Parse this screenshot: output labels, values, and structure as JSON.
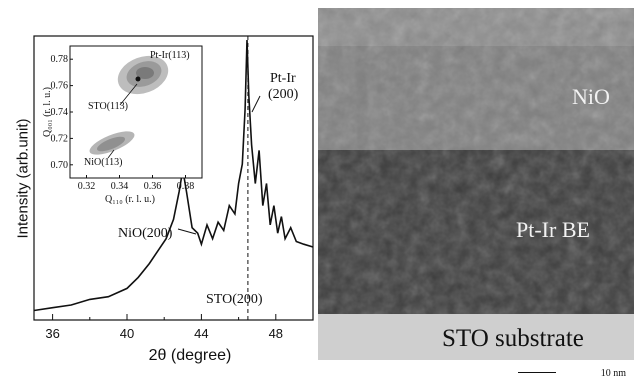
{
  "chart_data": [
    {
      "type": "line",
      "xlabel": "2θ (degree)",
      "ylabel": "Intensity (arb.unit)",
      "xlim": [
        35,
        50
      ],
      "xticks": [
        36,
        40,
        44,
        48
      ],
      "minor_xticks": [
        38,
        42,
        46
      ],
      "x": [
        35.0,
        36.0,
        37.0,
        38.0,
        39.0,
        40.0,
        40.6,
        41.2,
        41.7,
        42.1,
        42.5,
        42.8,
        43.0,
        43.2,
        43.5,
        43.8,
        44.0,
        44.3,
        44.6,
        44.9,
        45.2,
        45.5,
        45.8,
        46.0,
        46.2,
        46.35,
        46.45,
        46.55,
        46.7,
        46.9,
        47.1,
        47.3,
        47.5,
        47.7,
        47.9,
        48.1,
        48.3,
        48.5,
        48.8,
        49.1,
        49.5,
        50.0
      ],
      "y": [
        0.02,
        0.03,
        0.04,
        0.06,
        0.07,
        0.1,
        0.14,
        0.19,
        0.24,
        0.28,
        0.35,
        0.45,
        0.53,
        0.45,
        0.32,
        0.3,
        0.26,
        0.33,
        0.28,
        0.34,
        0.31,
        0.4,
        0.37,
        0.48,
        0.55,
        0.75,
        1.0,
        0.8,
        0.62,
        0.48,
        0.6,
        0.4,
        0.48,
        0.33,
        0.4,
        0.3,
        0.36,
        0.28,
        0.32,
        0.27,
        0.26,
        0.25
      ],
      "reference_line": {
        "x": 46.5,
        "style": "dashed"
      },
      "annotations": [
        "Pt-Ir",
        "(200)",
        "NiO(200)",
        "STO(200)"
      ]
    },
    {
      "type": "scatter",
      "xlabel": "Q₁₁₀ (r. l. u.)",
      "ylabel": "Q₀₀₁ (r. l. u.)",
      "xlim": [
        0.31,
        0.39
      ],
      "ylim": [
        0.69,
        0.79
      ],
      "xticks": [
        "0.32",
        "0.34",
        "0.36",
        "0.38"
      ],
      "yticks": [
        "0.70",
        "0.72",
        "0.74",
        "0.76",
        "0.78"
      ],
      "annotations": [
        "Pt-Ir(113)",
        "STO(113)",
        "NiO(113)"
      ]
    }
  ],
  "tem": {
    "layers": [
      "NiO",
      "Pt-Ir BE",
      "STO substrate"
    ],
    "scale_bar": "10 nm"
  }
}
